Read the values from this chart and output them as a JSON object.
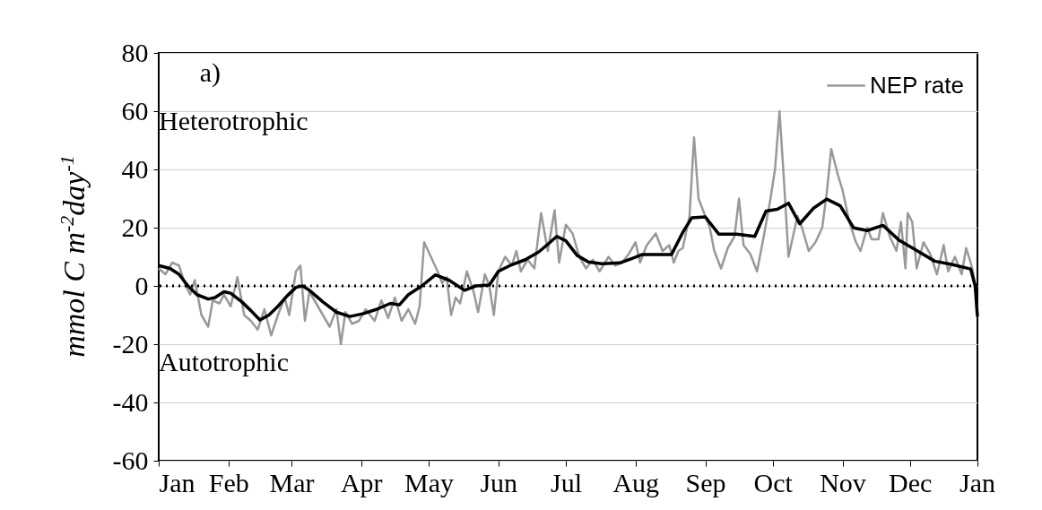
{
  "chart_data": {
    "type": "line",
    "ylabel": "mmol C m$^{-2}$day$^{-1}$",
    "annotations": [
      "a)",
      "Heterotrophic",
      "Autotrophic",
      "Jan"
    ],
    "xlim": [
      "--01-01",
      "--12-31"
    ],
    "xticks": [
      {
        "value": "--01-01",
        "label": "Jan"
      },
      {
        "value": "--02-01",
        "label": "Feb"
      },
      {
        "value": "--03-01",
        "label": "Mar"
      },
      {
        "value": "--04-01",
        "label": "Apr"
      },
      {
        "value": "--05-01",
        "label": "May"
      },
      {
        "value": "--06-01",
        "label": "Jun"
      },
      {
        "value": "--07-01",
        "label": "Jul"
      },
      {
        "value": "--08-01",
        "label": "Aug"
      },
      {
        "value": "--09-01",
        "label": "Sep"
      },
      {
        "value": "--10-01",
        "label": "Oct"
      },
      {
        "value": "--11-01",
        "label": "Nov"
      },
      {
        "value": "--12-01",
        "label": "Dec"
      },
      {
        "value": "--12-31",
        "label": null
      }
    ],
    "ylim": [
      -60,
      80
    ],
    "yticks": [
      -60,
      -40,
      -20,
      0,
      20,
      40,
      60,
      80
    ],
    "grid": "y",
    "legend": "top right",
    "line_style": "solid",
    "marker": "none",
    "ref_lines": [
      {
        "axis": "y",
        "value": 0,
        "color": "#000000",
        "line_style": "dotted"
      }
    ],
    "series": [
      {
        "name": "NEP rate",
        "color": "#999999",
        "x": [
          "--01-01",
          "--01-04",
          "--01-07",
          "--01-10",
          "--01-13",
          "--01-15",
          "--01-17",
          "--01-20",
          "--01-23",
          "--01-25",
          "--01-28",
          "--01-30",
          "--02-02",
          "--02-05",
          "--02-08",
          "--02-11",
          "--02-14",
          "--02-17",
          "--02-20",
          "--02-23",
          "--02-26",
          "--02-28",
          "--03-03",
          "--03-05",
          "--03-07",
          "--03-09",
          "--03-12",
          "--03-15",
          "--03-18",
          "--03-21",
          "--03-23",
          "--03-25",
          "--03-28",
          "--03-31",
          "--04-03",
          "--04-07",
          "--04-10",
          "--04-13",
          "--04-16",
          "--04-19",
          "--04-22",
          "--04-25",
          "--04-27",
          "--04-29",
          "--05-02",
          "--05-05",
          "--05-07",
          "--05-09",
          "--05-11",
          "--05-13",
          "--05-15",
          "--05-18",
          "--05-21",
          "--05-23",
          "--05-26",
          "--05-28",
          "--05-30",
          "--06-01",
          "--06-04",
          "--06-07",
          "--06-09",
          "--06-11",
          "--06-14",
          "--06-17",
          "--06-20",
          "--06-23",
          "--06-26",
          "--06-28",
          "--07-01",
          "--07-04",
          "--07-07",
          "--07-10",
          "--07-13",
          "--07-16",
          "--07-20",
          "--07-23",
          "--07-26",
          "--07-29",
          "--08-01",
          "--08-03",
          "--08-06",
          "--08-10",
          "--08-13",
          "--08-16",
          "--08-18",
          "--08-20",
          "--08-22",
          "--08-25",
          "--08-27",
          "--08-29",
          "--09-03",
          "--09-05",
          "--09-08",
          "--09-11",
          "--09-14",
          "--09-16",
          "--09-18",
          "--09-21",
          "--09-24",
          "--09-27",
          "--09-30",
          "--10-02",
          "--10-04",
          "--10-06",
          "--10-08",
          "--10-12",
          "--10-14",
          "--10-17",
          "--10-20",
          "--10-23",
          "--10-25",
          "--10-27",
          "--10-30",
          "--11-01",
          "--11-04",
          "--11-07",
          "--11-09",
          "--11-12",
          "--11-14",
          "--11-17",
          "--11-19",
          "--11-22",
          "--11-25",
          "--11-27",
          "--11-29",
          "--11-30",
          "--12-02",
          "--12-04",
          "--12-07",
          "--12-10",
          "--12-13",
          "--12-16",
          "--12-18",
          "--12-21",
          "--12-24",
          "--12-26",
          "--12-28",
          "--12-29",
          "--12-30",
          "--12-31"
        ],
        "values": [
          6,
          4,
          8,
          7,
          0,
          -3,
          2,
          -10,
          -14,
          -5,
          -6,
          -3,
          -7,
          3,
          -10,
          -12,
          -15,
          -8,
          -17,
          -10,
          -4,
          -10,
          5,
          7,
          -12,
          -2,
          -6,
          -10,
          -14,
          -8,
          -20,
          -9,
          -13,
          -12,
          -8,
          -12,
          -5,
          -11,
          -4,
          -12,
          -8,
          -13,
          -7,
          15,
          10,
          5,
          1,
          3,
          -10,
          -4,
          -6,
          5,
          -2,
          -9,
          4,
          0,
          -10,
          5,
          10,
          7,
          12,
          5,
          9,
          6,
          25,
          12,
          26,
          8,
          21,
          18,
          10,
          6,
          9,
          5,
          10,
          7,
          8,
          11,
          15,
          8,
          14,
          18,
          12,
          14,
          8,
          12,
          13,
          24,
          51,
          30,
          20,
          12,
          6,
          13,
          17,
          30,
          14,
          11,
          5,
          17,
          30,
          40,
          60,
          36,
          10,
          24,
          20,
          12,
          15,
          20,
          32,
          47,
          38,
          33,
          22,
          15,
          12,
          20,
          16,
          16,
          25,
          17,
          12,
          22,
          6,
          25,
          22,
          6,
          15,
          11,
          4,
          14,
          5,
          10,
          4,
          13,
          8,
          5,
          0,
          -10
        ]
      },
      {
        "color": "#000000",
        "x": [
          "--01-01",
          "--01-06",
          "--01-10",
          "--01-14",
          "--01-18",
          "--01-23",
          "--01-26",
          "--01-30",
          "--02-02",
          "--02-07",
          "--02-11",
          "--02-15",
          "--02-19",
          "--02-23",
          "--02-27",
          "--03-03",
          "--03-06",
          "--03-09",
          "--03-15",
          "--03-21",
          "--03-27",
          "--04-02",
          "--04-08",
          "--04-14",
          "--04-18",
          "--04-22",
          "--04-28",
          "--05-04",
          "--05-10",
          "--05-17",
          "--05-22",
          "--05-28",
          "--06-01",
          "--06-07",
          "--06-13",
          "--06-19",
          "--06-23",
          "--06-27",
          "--07-01",
          "--07-06",
          "--07-11",
          "--07-17",
          "--07-25",
          "--07-31",
          "--08-04",
          "--08-12",
          "--08-17",
          "--08-22",
          "--08-26",
          "--09-01",
          "--09-07",
          "--09-15",
          "--09-23",
          "--09-28",
          "--10-03",
          "--10-08",
          "--10-13",
          "--10-19",
          "--10-25",
          "--10-31",
          "--11-06",
          "--11-12",
          "--11-19",
          "--11-26",
          "--12-05",
          "--12-12",
          "--12-20",
          "--12-28",
          "--12-30",
          "--12-31"
        ],
        "values": [
          7,
          6,
          4,
          0,
          -3,
          -4.5,
          -4,
          -2,
          -2.5,
          -5.5,
          -8.5,
          -11.7,
          -10,
          -7,
          -3.5,
          -0.5,
          0,
          -1.5,
          -5.5,
          -9,
          -10.5,
          -9.5,
          -8,
          -6,
          -6.5,
          -3,
          0,
          3.8,
          2,
          -1.5,
          0,
          0.3,
          5,
          7.3,
          9,
          11.7,
          14.3,
          17,
          15.5,
          10.5,
          8.2,
          7.6,
          7.9,
          9.6,
          10.8,
          10.8,
          10.8,
          18.4,
          23.4,
          23.7,
          17.8,
          17.8,
          17,
          25.7,
          26.3,
          28.4,
          21.3,
          26.6,
          29.8,
          27.5,
          19.9,
          19,
          20.8,
          15.8,
          11.7,
          8.5,
          7.3,
          5.8,
          0,
          -10.5
        ]
      }
    ]
  }
}
